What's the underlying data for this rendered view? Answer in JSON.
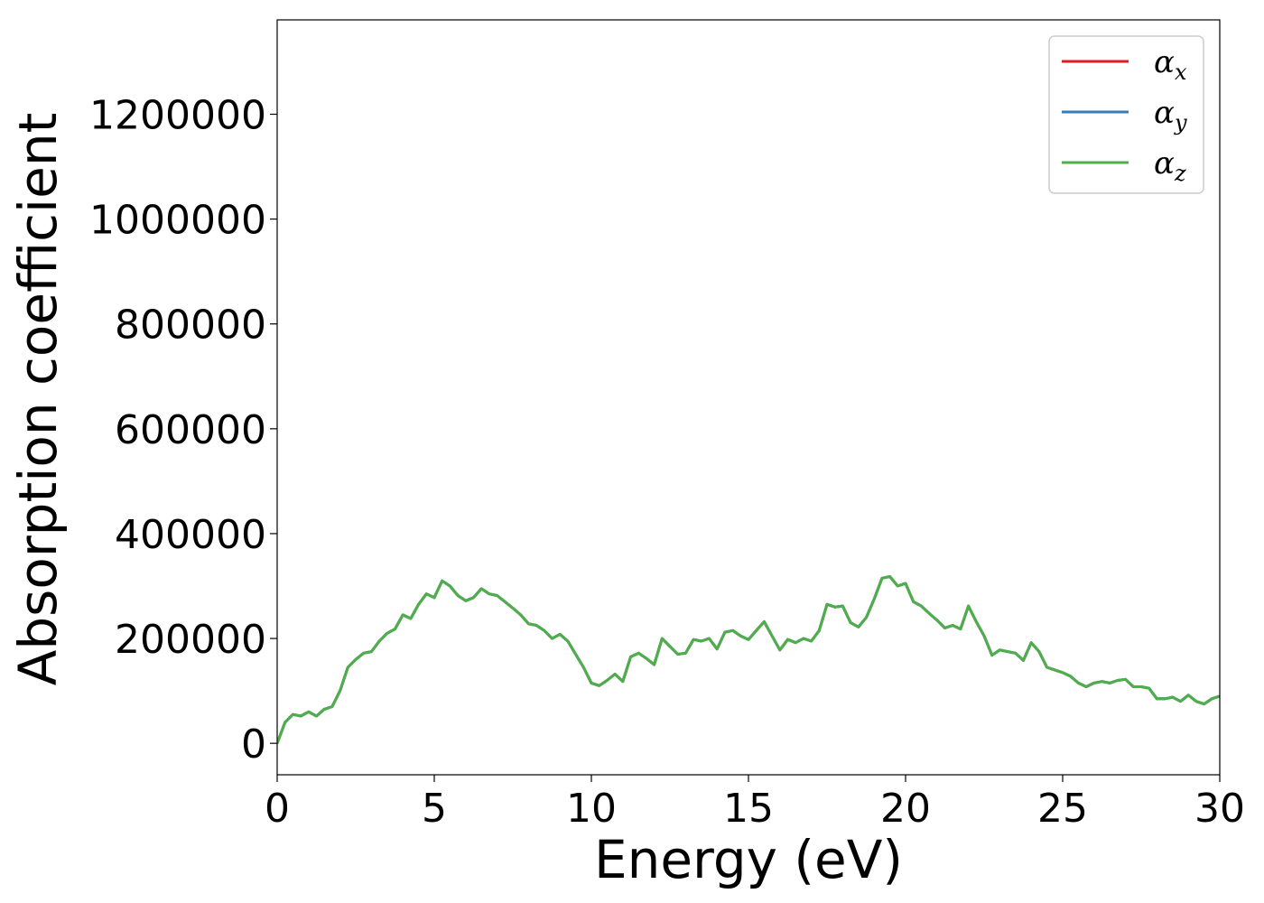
{
  "chart_data": {
    "type": "line",
    "title": "",
    "xlabel": "Energy (eV)",
    "ylabel": "Absorption coefficient",
    "xlim": [
      0,
      30
    ],
    "ylim": [
      -60000,
      1380000
    ],
    "xticks": [
      0,
      5,
      10,
      15,
      20,
      25,
      30
    ],
    "yticks": [
      0,
      200000,
      400000,
      600000,
      800000,
      1000000,
      1200000
    ],
    "xtick_labels": [
      "0",
      "5",
      "10",
      "15",
      "20",
      "25",
      "30"
    ],
    "ytick_labels": [
      "0",
      "200000",
      "400000",
      "600000",
      "800000",
      "1000000",
      "1200000"
    ],
    "grid": false,
    "legend_position": "top-right",
    "series": [
      {
        "name": "α",
        "subscript": "x",
        "color": "#e41a1c"
      },
      {
        "name": "α",
        "subscript": "y",
        "color": "#377eb8"
      },
      {
        "name": "α",
        "subscript": "z",
        "color": "#4daf4a"
      }
    ],
    "x": [
      0.0,
      0.25,
      0.5,
      0.75,
      1.0,
      1.25,
      1.5,
      1.75,
      2.0,
      2.25,
      2.5,
      2.75,
      3.0,
      3.25,
      3.5,
      3.75,
      4.0,
      4.25,
      4.5,
      4.75,
      5.0,
      5.25,
      5.5,
      5.75,
      6.0,
      6.25,
      6.5,
      6.75,
      7.0,
      7.25,
      7.5,
      7.75,
      8.0,
      8.25,
      8.5,
      8.75,
      9.0,
      9.25,
      9.5,
      9.75,
      10.0,
      10.25,
      10.5,
      10.75,
      11.0,
      11.25,
      11.5,
      11.75,
      12.0,
      12.25,
      12.5,
      12.75,
      13.0,
      13.25,
      13.5,
      13.75,
      14.0,
      14.25,
      14.5,
      14.75,
      15.0,
      15.25,
      15.5,
      15.75,
      16.0,
      16.25,
      16.5,
      16.75,
      17.0,
      17.25,
      17.5,
      17.75,
      18.0,
      18.25,
      18.5,
      18.75,
      19.0,
      19.25,
      19.5,
      19.75,
      20.0,
      20.25,
      20.5,
      20.75,
      21.0,
      21.25,
      21.5,
      21.75,
      22.0,
      22.25,
      22.5,
      22.75,
      23.0,
      23.25,
      23.5,
      23.75,
      24.0,
      24.25,
      24.5,
      24.75,
      25.0,
      25.25,
      25.5,
      25.75,
      26.0,
      26.25,
      26.5,
      26.75,
      27.0,
      27.25,
      27.5,
      27.75,
      28.0,
      28.25,
      28.5,
      28.75,
      29.0,
      29.25,
      29.5,
      29.75,
      30.0
    ],
    "y": [
      0,
      40000,
      55000,
      52000,
      60000,
      52000,
      65000,
      70000,
      100000,
      145000,
      160000,
      172000,
      175000,
      195000,
      210000,
      218000,
      245000,
      238000,
      265000,
      285000,
      278000,
      310000,
      300000,
      282000,
      272000,
      278000,
      295000,
      285000,
      282000,
      270000,
      258000,
      245000,
      228000,
      225000,
      215000,
      200000,
      208000,
      195000,
      170000,
      145000,
      115000,
      110000,
      120000,
      132000,
      118000,
      165000,
      172000,
      162000,
      150000,
      200000,
      185000,
      170000,
      172000,
      198000,
      195000,
      200000,
      180000,
      212000,
      215000,
      205000,
      198000,
      215000,
      232000,
      205000,
      178000,
      198000,
      192000,
      200000,
      195000,
      215000,
      265000,
      260000,
      262000,
      230000,
      222000,
      240000,
      275000,
      315000,
      318000,
      300000,
      305000,
      270000,
      262000,
      248000,
      235000,
      220000,
      225000,
      218000,
      262000,
      232000,
      205000,
      168000,
      178000,
      175000,
      172000,
      158000,
      192000,
      175000,
      145000,
      140000,
      135000,
      128000,
      115000,
      108000,
      115000,
      118000,
      115000,
      120000,
      122000,
      108000,
      108000,
      105000,
      85000,
      85000,
      88000,
      80000,
      92000,
      80000,
      75000,
      85000,
      90000
    ]
  }
}
